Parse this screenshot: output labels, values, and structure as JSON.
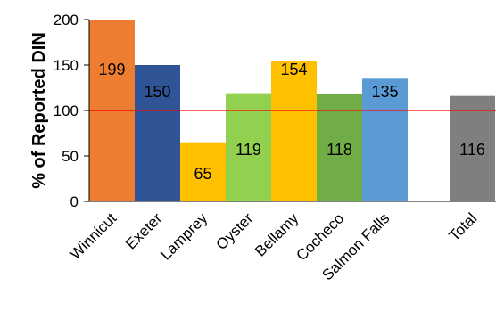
{
  "chart_data": {
    "type": "bar",
    "ylabel": "% of Reported DIN",
    "xlabel": "",
    "ylim": [
      0,
      200
    ],
    "yticks": [
      0,
      50,
      100,
      150,
      200
    ],
    "reference_line": {
      "value": 100,
      "color": "#ff0000"
    },
    "grid": false,
    "categories": [
      "Winnicut",
      "Exeter",
      "Lamprey",
      "Oyster",
      "Bellamy",
      "Cocheco",
      "Salmon Falls",
      "Total"
    ],
    "values": [
      199,
      150,
      65,
      119,
      154,
      118,
      135,
      116
    ],
    "labels": [
      "199",
      "150",
      "65",
      "119",
      "154",
      "118",
      "135",
      "116"
    ],
    "colors": [
      "#ed7d31",
      "#2f5597",
      "#ffc000",
      "#92d050",
      "#ffc000",
      "#70ad47",
      "#5b9bd5",
      "#7f7f7f"
    ]
  }
}
